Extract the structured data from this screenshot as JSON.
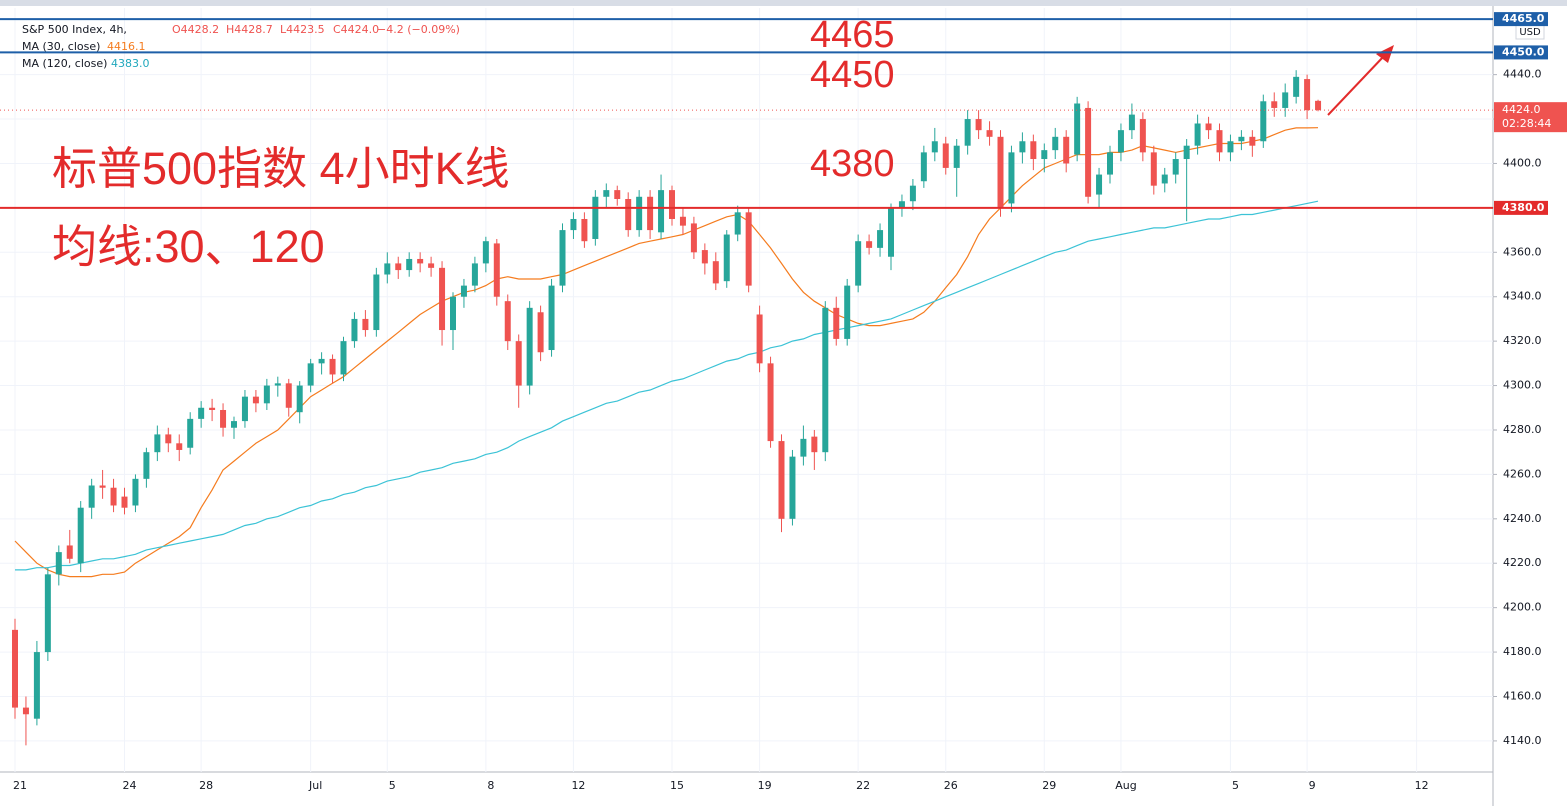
{
  "chart_data": {
    "type": "candlestick",
    "header": {
      "symbol": "S&P 500 Index, 4h,",
      "open": "O4428.2",
      "high": "H4428.7",
      "low": "L4423.5",
      "close": "C4424.0",
      "change": "−4.2 (−0.09%)"
    },
    "currency": "USD",
    "annotations": {
      "line1": "4465",
      "line2": "4450",
      "line3": "4380",
      "title": "标普500指数 4小时K线",
      "subtitle": "均线:30、120"
    },
    "up_color": "#26a69a",
    "down_color": "#ef5350",
    "ylim": [
      4126,
      4470
    ],
    "yticks": [
      {
        "value": 4140,
        "label": "4140.0"
      },
      {
        "value": 4160,
        "label": "4160.0"
      },
      {
        "value": 4180,
        "label": "4180.0"
      },
      {
        "value": 4200,
        "label": "4200.0"
      },
      {
        "value": 4220,
        "label": "4220.0"
      },
      {
        "value": 4240,
        "label": "4240.0"
      },
      {
        "value": 4260,
        "label": "4260.0"
      },
      {
        "value": 4280,
        "label": "4280.0"
      },
      {
        "value": 4300,
        "label": "4300.0"
      },
      {
        "value": 4320,
        "label": "4320.0"
      },
      {
        "value": 4340,
        "label": "4340.0"
      },
      {
        "value": 4360,
        "label": "4360.0"
      },
      {
        "value": 4380,
        "label": "4380.0"
      },
      {
        "value": 4400,
        "label": "4400.0"
      },
      {
        "value": 4420,
        "label": "4420.0"
      },
      {
        "value": 4440,
        "label": "4440.0"
      }
    ],
    "hlines": [
      {
        "value": 4465,
        "label": "4465.0",
        "color": "#1e5fa8"
      },
      {
        "value": 4450,
        "label": "4450.0",
        "color": "#1e5fa8"
      },
      {
        "value": 4380,
        "label": "4380.0",
        "color": "#e32b2b"
      }
    ],
    "last_price": {
      "value": 4424.0,
      "label": "4424.0",
      "countdown": "02:28:44",
      "color": "#ef5350"
    },
    "categories": [
      "21",
      null,
      null,
      null,
      null,
      null,
      null,
      null,
      null,
      null,
      "24",
      null,
      null,
      null,
      null,
      null,
      null,
      "28",
      null,
      null,
      null,
      null,
      null,
      null,
      null,
      null,
      null,
      "Jul",
      null,
      null,
      null,
      null,
      null,
      null,
      "5",
      null,
      null,
      null,
      null,
      null,
      null,
      null,
      null,
      "8",
      null,
      null,
      null,
      null,
      null,
      null,
      null,
      "12",
      null,
      null,
      null,
      null,
      null,
      null,
      null,
      null,
      "15",
      null,
      null,
      null,
      null,
      null,
      null,
      null,
      "19",
      null,
      null,
      null,
      null,
      null,
      null,
      null,
      null,
      "22",
      null,
      null,
      null,
      null,
      null,
      null,
      null,
      "26",
      null,
      null,
      null,
      null,
      null,
      null,
      null,
      null,
      "29",
      null,
      null,
      null,
      null,
      null,
      null,
      "Aug",
      null,
      null,
      null,
      null,
      null,
      null,
      null,
      null,
      null,
      "5",
      null,
      null,
      null,
      null,
      null,
      null,
      "9",
      null,
      null,
      null,
      null,
      null,
      null,
      null,
      null,
      null,
      "12"
    ],
    "ohlc": [
      [
        4190,
        4195,
        4150,
        4155
      ],
      [
        4155,
        4160,
        4138,
        4152
      ],
      [
        4150,
        4185,
        4147,
        4180
      ],
      [
        4180,
        4218,
        4176,
        4215
      ],
      [
        4215,
        4228,
        4210,
        4225
      ],
      [
        4228,
        4235,
        4220,
        4222
      ],
      [
        4220,
        4248,
        4216,
        4245
      ],
      [
        4245,
        4258,
        4240,
        4255
      ],
      [
        4255,
        4262,
        4249,
        4254
      ],
      [
        4254,
        4258,
        4243,
        4246
      ],
      [
        4250,
        4254,
        4242,
        4245
      ],
      [
        4246,
        4260,
        4243,
        4258
      ],
      [
        4258,
        4272,
        4254,
        4270
      ],
      [
        4270,
        4282,
        4266,
        4278
      ],
      [
        4278,
        4281,
        4270,
        4274
      ],
      [
        4274,
        4278,
        4266,
        4271
      ],
      [
        4272,
        4288,
        4269,
        4285
      ],
      [
        4285,
        4293,
        4281,
        4290
      ],
      [
        4290,
        4294,
        4284,
        4289
      ],
      [
        4289,
        4292,
        4277,
        4281
      ],
      [
        4281,
        4286,
        4276,
        4284
      ],
      [
        4284,
        4298,
        4281,
        4295
      ],
      [
        4295,
        4298,
        4288,
        4292
      ],
      [
        4292,
        4303,
        4289,
        4300
      ],
      [
        4300,
        4304,
        4295,
        4301
      ],
      [
        4301,
        4303,
        4286,
        4290
      ],
      [
        4288,
        4302,
        4283,
        4300
      ],
      [
        4300,
        4312,
        4297,
        4310
      ],
      [
        4310,
        4315,
        4305,
        4312
      ],
      [
        4312,
        4314,
        4301,
        4305
      ],
      [
        4305,
        4322,
        4302,
        4320
      ],
      [
        4320,
        4333,
        4317,
        4330
      ],
      [
        4330,
        4334,
        4322,
        4325
      ],
      [
        4325,
        4353,
        4322,
        4350
      ],
      [
        4350,
        4360,
        4346,
        4355
      ],
      [
        4355,
        4358,
        4348,
        4352
      ],
      [
        4352,
        4360,
        4349,
        4357
      ],
      [
        4357,
        4360,
        4351,
        4355
      ],
      [
        4355,
        4358,
        4349,
        4353
      ],
      [
        4353,
        4356,
        4318,
        4325
      ],
      [
        4325,
        4342,
        4316,
        4340
      ],
      [
        4340,
        4348,
        4335,
        4345
      ],
      [
        4345,
        4358,
        4342,
        4355
      ],
      [
        4355,
        4367,
        4351,
        4365
      ],
      [
        4364,
        4366,
        4336,
        4340
      ],
      [
        4338,
        4341,
        4316,
        4320
      ],
      [
        4320,
        4323,
        4290,
        4300
      ],
      [
        4300,
        4338,
        4296,
        4335
      ],
      [
        4333,
        4336,
        4311,
        4315
      ],
      [
        4316,
        4348,
        4313,
        4345
      ],
      [
        4345,
        4373,
        4342,
        4370
      ],
      [
        4370,
        4378,
        4366,
        4375
      ],
      [
        4375,
        4378,
        4362,
        4365
      ],
      [
        4366,
        4388,
        4363,
        4385
      ],
      [
        4385,
        4391,
        4380,
        4388
      ],
      [
        4388,
        4390,
        4381,
        4384
      ],
      [
        4384,
        4387,
        4367,
        4370
      ],
      [
        4370,
        4388,
        4367,
        4385
      ],
      [
        4385,
        4388,
        4366,
        4370
      ],
      [
        4369,
        4395,
        4366,
        4388
      ],
      [
        4388,
        4390,
        4372,
        4375
      ],
      [
        4376,
        4380,
        4368,
        4372
      ],
      [
        4373,
        4376,
        4357,
        4360
      ],
      [
        4361,
        4364,
        4350,
        4355
      ],
      [
        4356,
        4360,
        4343,
        4346
      ],
      [
        4347,
        4370,
        4344,
        4368
      ],
      [
        4368,
        4381,
        4365,
        4378
      ],
      [
        4378,
        4380,
        4342,
        4345
      ],
      [
        4332,
        4336,
        4306,
        4310
      ],
      [
        4310,
        4313,
        4272,
        4275
      ],
      [
        4275,
        4278,
        4234,
        4240
      ],
      [
        4240,
        4271,
        4237,
        4268
      ],
      [
        4268,
        4282,
        4264,
        4276
      ],
      [
        4277,
        4280,
        4262,
        4270
      ],
      [
        4270,
        4338,
        4266,
        4335
      ],
      [
        4335,
        4340,
        4318,
        4321
      ],
      [
        4321,
        4348,
        4318,
        4345
      ],
      [
        4345,
        4368,
        4342,
        4365
      ],
      [
        4365,
        4368,
        4359,
        4362
      ],
      [
        4362,
        4373,
        4358,
        4370
      ],
      [
        4358,
        4382,
        4352,
        4380
      ],
      [
        4380,
        4386,
        4376,
        4383
      ],
      [
        4383,
        4393,
        4379,
        4390
      ],
      [
        4392,
        4408,
        4389,
        4405
      ],
      [
        4405,
        4416,
        4401,
        4410
      ],
      [
        4409,
        4412,
        4395,
        4398
      ],
      [
        4398,
        4411,
        4385,
        4408
      ],
      [
        4408,
        4424,
        4404,
        4420
      ],
      [
        4420,
        4424,
        4411,
        4415
      ],
      [
        4415,
        4419,
        4408,
        4412
      ],
      [
        4412,
        4415,
        4376,
        4380
      ],
      [
        4382,
        4408,
        4378,
        4405
      ],
      [
        4405,
        4414,
        4400,
        4410
      ],
      [
        4410,
        4413,
        4397,
        4402
      ],
      [
        4402,
        4409,
        4396,
        4406
      ],
      [
        4406,
        4416,
        4402,
        4412
      ],
      [
        4412,
        4415,
        4396,
        4400
      ],
      [
        4404,
        4430,
        4401,
        4427
      ],
      [
        4425,
        4428,
        4382,
        4385
      ],
      [
        4386,
        4398,
        4380,
        4395
      ],
      [
        4395,
        4408,
        4391,
        4405
      ],
      [
        4405,
        4418,
        4401,
        4415
      ],
      [
        4415,
        4427,
        4411,
        4422
      ],
      [
        4420,
        4423,
        4401,
        4405
      ],
      [
        4405,
        4408,
        4386,
        4390
      ],
      [
        4391,
        4398,
        4387,
        4395
      ],
      [
        4395,
        4405,
        4391,
        4402
      ],
      [
        4402,
        4411,
        4374,
        4408
      ],
      [
        4408,
        4422,
        4404,
        4418
      ],
      [
        4418,
        4421,
        4411,
        4415
      ],
      [
        4415,
        4418,
        4401,
        4405
      ],
      [
        4405,
        4413,
        4401,
        4410
      ],
      [
        4410,
        4415,
        4406,
        4412
      ],
      [
        4412,
        4415,
        4403,
        4408
      ],
      [
        4410,
        4431,
        4407,
        4428
      ],
      [
        4428,
        4432,
        4421,
        4425
      ],
      [
        4425,
        4436,
        4421,
        4432
      ],
      [
        4430,
        4442,
        4427,
        4439
      ],
      [
        4438,
        4440,
        4420,
        4424
      ],
      [
        4428.2,
        4428.7,
        4423.5,
        4424.0
      ],
      null,
      null,
      null,
      null,
      null,
      null,
      null,
      null,
      null
    ],
    "series": [
      {
        "name": "MA (30, close)",
        "legend_value": "4416.1",
        "color": "#f57c1f",
        "values": [
          4230,
          4225,
          4220,
          4217,
          4215,
          4214,
          4214,
          4214,
          4215,
          4215,
          4216,
          4220,
          4223,
          4226,
          4229,
          4232,
          4236,
          4245,
          4253,
          4262,
          4266,
          4270,
          4274,
          4277,
          4280,
          4285,
          4290,
          4295,
          4298,
          4301,
          4304,
          4308,
          4312,
          4316,
          4320,
          4324,
          4328,
          4332,
          4335,
          4338,
          4340,
          4342,
          4343,
          4345,
          4348,
          4349,
          4348,
          4348,
          4348,
          4349,
          4350,
          4352,
          4354,
          4356,
          4358,
          4360,
          4362,
          4364,
          4365,
          4366,
          4367,
          4368,
          4370,
          4372,
          4374,
          4376,
          4377,
          4374,
          4368,
          4362,
          4355,
          4348,
          4342,
          4338,
          4335,
          4332,
          4330,
          4328,
          4327,
          4327,
          4328,
          4329,
          4330,
          4333,
          4338,
          4344,
          4350,
          4358,
          4368,
          4375,
          4380,
          4385,
          4390,
          4394,
          4398,
          4400,
          4402,
          4404,
          4404,
          4404,
          4405,
          4405,
          4406,
          4408,
          4407,
          4406,
          4405,
          4406,
          4407,
          4408,
          4409,
          4409,
          4409,
          4410,
          4411,
          4413,
          4415,
          4416,
          4416,
          4416.1,
          null,
          null,
          null,
          null,
          null,
          null,
          null,
          null,
          null
        ]
      },
      {
        "name": "MA (120, close)",
        "legend_value": "4383.0",
        "color": "#3cc3d6",
        "values": [
          4217,
          4217,
          4218,
          4218,
          4219,
          4219,
          4220,
          4221,
          4222,
          4222,
          4223,
          4224,
          4226,
          4227,
          4228,
          4229,
          4230,
          4231,
          4232,
          4233,
          4235,
          4237,
          4238,
          4240,
          4241,
          4243,
          4245,
          4246,
          4248,
          4249,
          4251,
          4252,
          4254,
          4255,
          4257,
          4258,
          4259,
          4261,
          4262,
          4263,
          4265,
          4266,
          4267,
          4269,
          4270,
          4272,
          4275,
          4277,
          4279,
          4281,
          4284,
          4286,
          4288,
          4290,
          4292,
          4293,
          4295,
          4297,
          4298,
          4300,
          4302,
          4303,
          4305,
          4307,
          4309,
          4311,
          4312,
          4314,
          4315,
          4317,
          4318,
          4320,
          4321,
          4323,
          4324,
          4325,
          4326,
          4327,
          4328,
          4329,
          4330,
          4332,
          4334,
          4336,
          4338,
          4340,
          4342,
          4344,
          4346,
          4348,
          4350,
          4352,
          4354,
          4356,
          4358,
          4360,
          4361,
          4363,
          4365,
          4366,
          4367,
          4368,
          4369,
          4370,
          4371,
          4371,
          4372,
          4373,
          4374,
          4375,
          4375,
          4376,
          4377,
          4377,
          4378,
          4379,
          4380,
          4381,
          4382,
          4383.0,
          null,
          null,
          null,
          null,
          null,
          null,
          null,
          null,
          null
        ]
      }
    ]
  }
}
